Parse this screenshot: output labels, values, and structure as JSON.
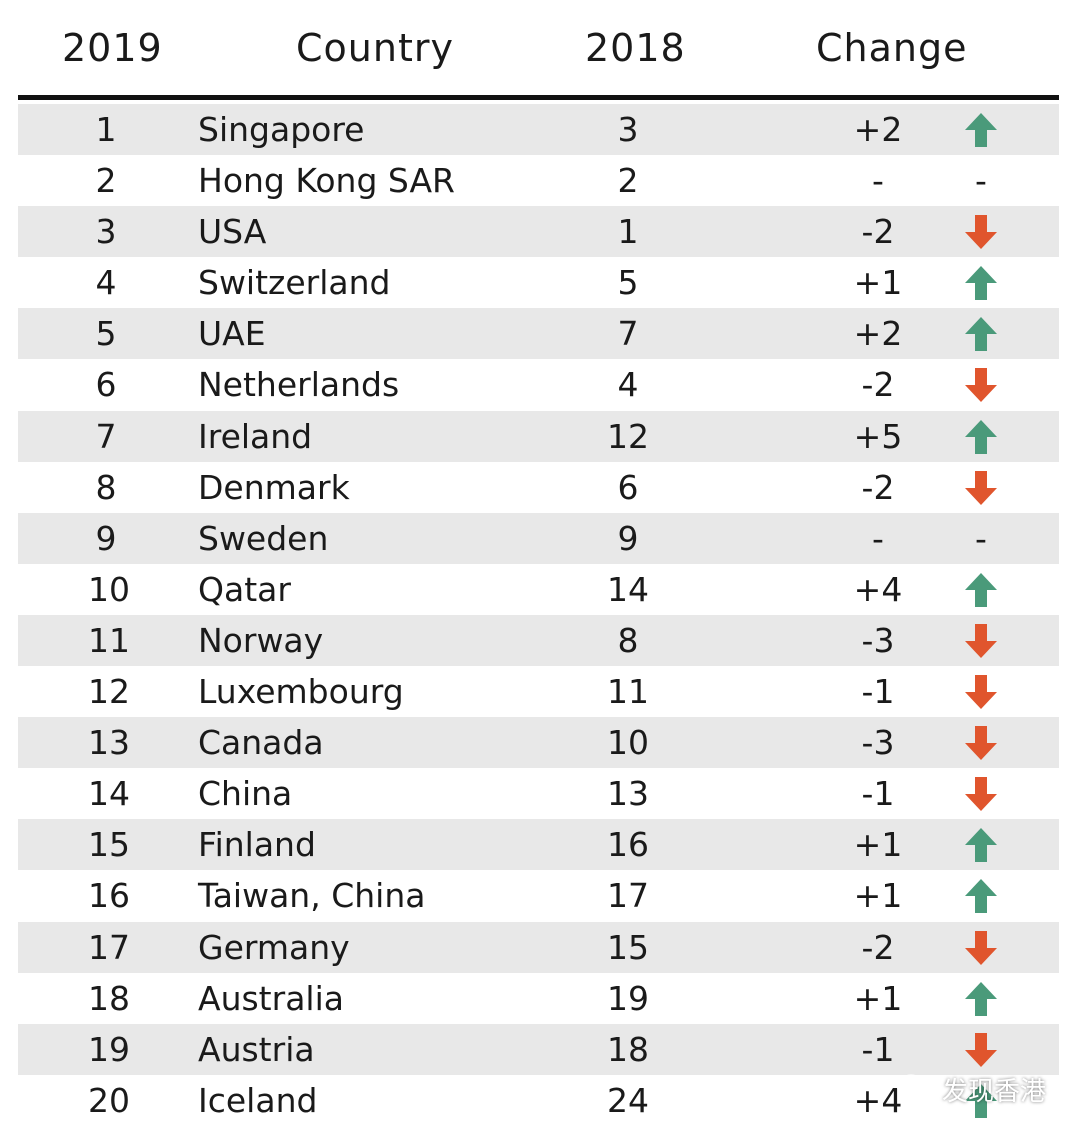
{
  "columns": [
    "2019",
    "Country",
    "2018",
    "Change"
  ],
  "colors": {
    "up": "#4a9a7a",
    "down": "#e0552d",
    "shade": "#e8e8e8",
    "rule": "#111111"
  },
  "chart_data": {
    "type": "table",
    "headers": [
      "2019",
      "Country",
      "2018",
      "Change"
    ],
    "rows": [
      {
        "rank": "1",
        "country": "Singapore",
        "prev": "3",
        "change": "+2",
        "direction": "up"
      },
      {
        "rank": "2",
        "country": "Hong Kong SAR",
        "prev": "2",
        "change": "-",
        "direction": "none"
      },
      {
        "rank": "3",
        "country": "USA",
        "prev": "1",
        "change": "-2",
        "direction": "down"
      },
      {
        "rank": "4",
        "country": "Switzerland",
        "prev": "5",
        "change": "+1",
        "direction": "up"
      },
      {
        "rank": "5",
        "country": "UAE",
        "prev": "7",
        "change": "+2",
        "direction": "up"
      },
      {
        "rank": "6",
        "country": "Netherlands",
        "prev": "4",
        "change": "-2",
        "direction": "down"
      },
      {
        "rank": "7",
        "country": "Ireland",
        "prev": "12",
        "change": "+5",
        "direction": "up"
      },
      {
        "rank": "8",
        "country": "Denmark",
        "prev": "6",
        "change": "-2",
        "direction": "down"
      },
      {
        "rank": "9",
        "country": "Sweden",
        "prev": "9",
        "change": "-",
        "direction": "none"
      },
      {
        "rank": "10",
        "country": "Qatar",
        "prev": "14",
        "change": "+4",
        "direction": "up"
      },
      {
        "rank": "11",
        "country": "Norway",
        "prev": "8",
        "change": "-3",
        "direction": "down"
      },
      {
        "rank": "12",
        "country": "Luxembourg",
        "prev": "11",
        "change": "-1",
        "direction": "down"
      },
      {
        "rank": "13",
        "country": "Canada",
        "prev": "10",
        "change": "-3",
        "direction": "down"
      },
      {
        "rank": "14",
        "country": "China",
        "prev": "13",
        "change": "-1",
        "direction": "down"
      },
      {
        "rank": "15",
        "country": "Finland",
        "prev": "16",
        "change": "+1",
        "direction": "up"
      },
      {
        "rank": "16",
        "country": "Taiwan, China",
        "prev": "17",
        "change": "+1",
        "direction": "up"
      },
      {
        "rank": "17",
        "country": "Germany",
        "prev": "15",
        "change": "-2",
        "direction": "down"
      },
      {
        "rank": "18",
        "country": "Australia",
        "prev": "19",
        "change": "+1",
        "direction": "up"
      },
      {
        "rank": "19",
        "country": "Austria",
        "prev": "18",
        "change": "-1",
        "direction": "down"
      },
      {
        "rank": "20",
        "country": "Iceland",
        "prev": "24",
        "change": "+4",
        "direction": "up"
      }
    ]
  },
  "watermark": {
    "icon": "wechat-icon",
    "text": "发现香港"
  }
}
